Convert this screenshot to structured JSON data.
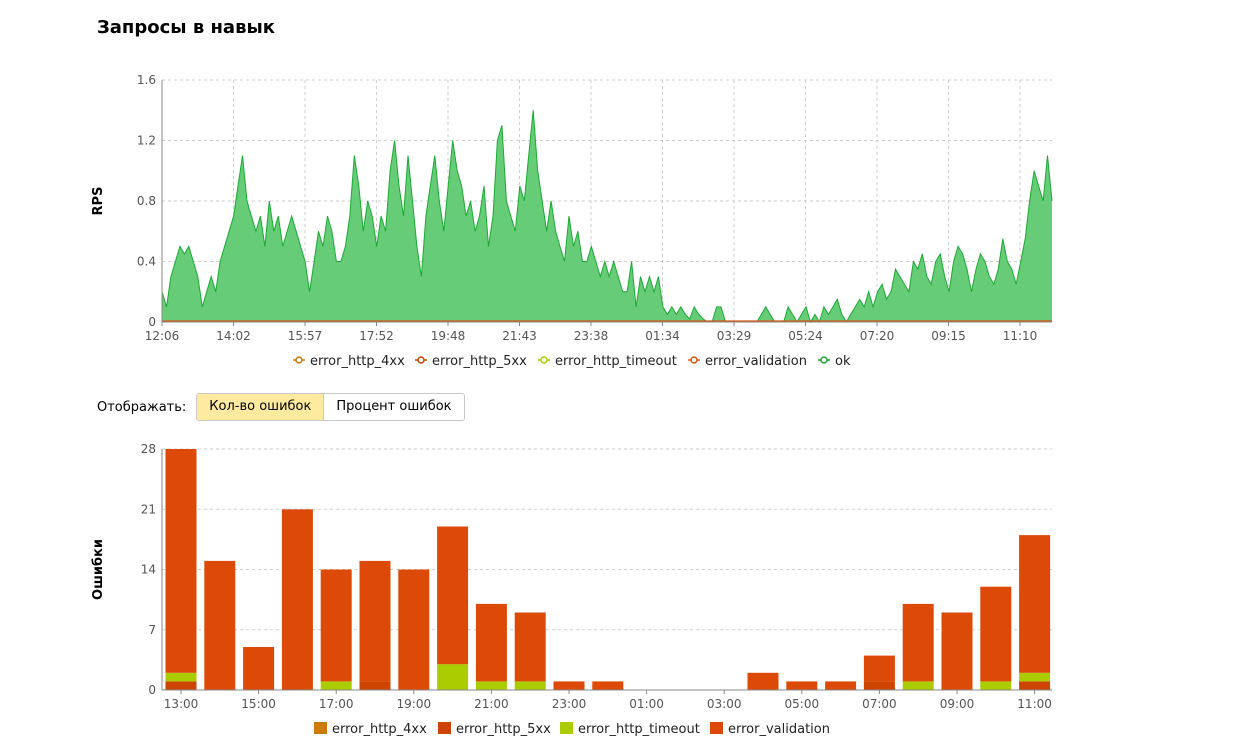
{
  "title": "Запросы в навык",
  "mode": {
    "label": "Отображать:",
    "options": [
      {
        "label": "Кол-во ошибок",
        "active": true
      },
      {
        "label": "Процент ошибок",
        "active": false
      }
    ]
  },
  "chart_data": [
    {
      "type": "area",
      "ylabel": "RPS",
      "ylim": [
        0,
        1.6
      ],
      "yticks": [
        "0",
        "0.4",
        "0.8",
        "1.2",
        "1.6"
      ],
      "xticks": [
        "12:06",
        "14:02",
        "15:57",
        "17:52",
        "19:48",
        "21:43",
        "23:38",
        "01:34",
        "03:29",
        "05:24",
        "07:20",
        "09:15",
        "11:10"
      ],
      "grid": true,
      "legend_position": "bottom",
      "legend": [
        {
          "name": "error_http_4xx",
          "color": "#cc7a00"
        },
        {
          "name": "error_http_5xx",
          "color": "#cc4400"
        },
        {
          "name": "error_http_timeout",
          "color": "#aacc00"
        },
        {
          "name": "error_validation",
          "color": "#dd5511"
        },
        {
          "name": "ok",
          "color": "#1aaa33"
        }
      ],
      "ok_fill": "#66cc77",
      "ok_stroke": "#1aaa33",
      "series_ok_values": [
        0.2,
        0.1,
        0.3,
        0.4,
        0.5,
        0.45,
        0.5,
        0.4,
        0.3,
        0.1,
        0.2,
        0.3,
        0.2,
        0.4,
        0.5,
        0.6,
        0.7,
        0.9,
        1.1,
        0.8,
        0.7,
        0.6,
        0.7,
        0.5,
        0.8,
        0.6,
        0.7,
        0.5,
        0.6,
        0.7,
        0.6,
        0.5,
        0.4,
        0.2,
        0.4,
        0.6,
        0.5,
        0.7,
        0.6,
        0.4,
        0.4,
        0.5,
        0.7,
        1.1,
        0.9,
        0.6,
        0.8,
        0.7,
        0.5,
        0.7,
        0.6,
        1.0,
        1.2,
        0.9,
        0.7,
        1.1,
        0.8,
        0.5,
        0.3,
        0.7,
        0.9,
        1.1,
        0.8,
        0.6,
        0.9,
        1.2,
        1.0,
        0.9,
        0.7,
        0.8,
        0.6,
        0.7,
        0.9,
        0.5,
        0.7,
        1.2,
        1.3,
        0.8,
        0.7,
        0.6,
        0.9,
        0.8,
        1.1,
        1.4,
        1.0,
        0.8,
        0.6,
        0.8,
        0.6,
        0.5,
        0.4,
        0.7,
        0.5,
        0.6,
        0.4,
        0.4,
        0.5,
        0.4,
        0.3,
        0.4,
        0.3,
        0.4,
        0.3,
        0.2,
        0.2,
        0.4,
        0.1,
        0.3,
        0.2,
        0.3,
        0.2,
        0.3,
        0.1,
        0.05,
        0.1,
        0.05,
        0.1,
        0.05,
        0.02,
        0.1,
        0.05,
        0.02,
        0.0,
        0.0,
        0.1,
        0.1,
        0.0,
        0.0,
        0.0,
        0.0,
        0.0,
        0.0,
        0.0,
        0.0,
        0.05,
        0.1,
        0.05,
        0.0,
        0.0,
        0.0,
        0.1,
        0.05,
        0.0,
        0.05,
        0.1,
        0.0,
        0.05,
        0.0,
        0.1,
        0.05,
        0.1,
        0.15,
        0.05,
        0.0,
        0.05,
        0.1,
        0.15,
        0.1,
        0.2,
        0.1,
        0.2,
        0.25,
        0.15,
        0.2,
        0.35,
        0.3,
        0.25,
        0.2,
        0.4,
        0.35,
        0.45,
        0.3,
        0.25,
        0.4,
        0.45,
        0.3,
        0.2,
        0.4,
        0.5,
        0.45,
        0.35,
        0.2,
        0.35,
        0.45,
        0.4,
        0.3,
        0.25,
        0.35,
        0.55,
        0.4,
        0.35,
        0.25,
        0.4,
        0.55,
        0.8,
        1.0,
        0.9,
        0.8,
        1.1,
        0.8
      ]
    },
    {
      "type": "bar",
      "stacked": true,
      "ylabel": "Ошибки",
      "ylim": [
        0,
        28
      ],
      "yticks": [
        "0",
        "7",
        "14",
        "21",
        "28"
      ],
      "xticks": [
        "13:00",
        "15:00",
        "17:00",
        "19:00",
        "21:00",
        "23:00",
        "01:00",
        "03:00",
        "05:00",
        "07:00",
        "09:00",
        "11:00"
      ],
      "grid": true,
      "legend_position": "bottom",
      "series": [
        {
          "name": "error_http_4xx",
          "color": "#cc7a00",
          "values": [
            0,
            0,
            0,
            0,
            0,
            0,
            0,
            0,
            0,
            0,
            0,
            0,
            0,
            0,
            0,
            0,
            0,
            0,
            0,
            0,
            0,
            0,
            0
          ]
        },
        {
          "name": "error_http_5xx",
          "color": "#cc4400",
          "values": [
            1,
            0,
            0,
            0,
            0,
            1,
            0,
            0,
            0,
            0,
            0,
            0,
            0,
            0,
            0,
            0,
            0,
            0,
            1,
            0,
            0,
            0,
            1
          ]
        },
        {
          "name": "error_http_timeout",
          "color": "#aacc00",
          "values": [
            1,
            0,
            0,
            0,
            1,
            0,
            0,
            3,
            1,
            1,
            0,
            0,
            0,
            0,
            0,
            0,
            0,
            0,
            0,
            1,
            0,
            1,
            1
          ]
        },
        {
          "name": "error_validation",
          "color": "#dd4a08",
          "values": [
            26,
            15,
            5,
            21,
            13,
            14,
            14,
            16,
            9,
            8,
            1,
            1,
            0,
            0,
            0,
            2,
            1,
            1,
            3,
            9,
            9,
            11,
            16
          ]
        }
      ]
    }
  ]
}
